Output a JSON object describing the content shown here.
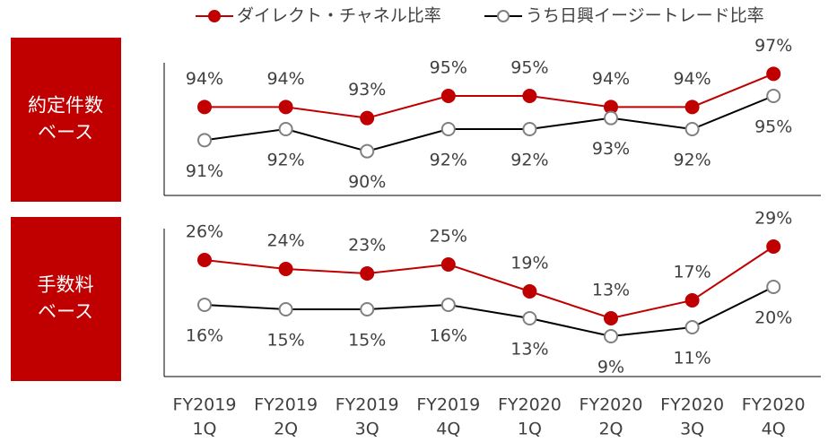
{
  "chart_data": [
    {
      "type": "line",
      "label": [
        "約定件数",
        "ベース"
      ],
      "ylim": [
        86,
        98
      ],
      "series": [
        {
          "name": "ダイレクト・チャネル比率",
          "color": "#c00000",
          "values": [
            94,
            94,
            93,
            95,
            95,
            94,
            94,
            97
          ],
          "value_labels": [
            "94%",
            "94%",
            "93%",
            "95%",
            "95%",
            "94%",
            "94%",
            "97%"
          ]
        },
        {
          "name": "うち日興イージートレード比率",
          "color": "#000000",
          "marker_color": "#808080",
          "values": [
            91,
            92,
            90,
            92,
            92,
            93,
            92,
            95
          ],
          "value_labels": [
            "91%",
            "92%",
            "90%",
            "92%",
            "92%",
            "93%",
            "92%",
            "95%"
          ]
        }
      ]
    },
    {
      "type": "line",
      "label": [
        "手数料",
        "ベース"
      ],
      "ylim": [
        0,
        33
      ],
      "categories": [
        [
          "FY2019",
          "1Q"
        ],
        [
          "FY2019",
          "2Q"
        ],
        [
          "FY2019",
          "3Q"
        ],
        [
          "FY2019",
          "4Q"
        ],
        [
          "FY2020",
          "1Q"
        ],
        [
          "FY2020",
          "2Q"
        ],
        [
          "FY2020",
          "3Q"
        ],
        [
          "FY2020",
          "4Q"
        ]
      ],
      "series": [
        {
          "color": "#c00000",
          "values": [
            26,
            24,
            23,
            25,
            19,
            13,
            17,
            29
          ],
          "value_labels": [
            "26%",
            "24%",
            "23%",
            "25%",
            "19%",
            "13%",
            "17%",
            "29%"
          ]
        },
        {
          "color": "#000000",
          "marker_color": "#808080",
          "values": [
            16,
            15,
            15,
            16,
            13,
            9,
            11,
            20
          ],
          "value_labels": [
            "16%",
            "15%",
            "15%",
            "16%",
            "13%",
            "9%",
            "11%",
            "20%"
          ]
        }
      ]
    }
  ]
}
